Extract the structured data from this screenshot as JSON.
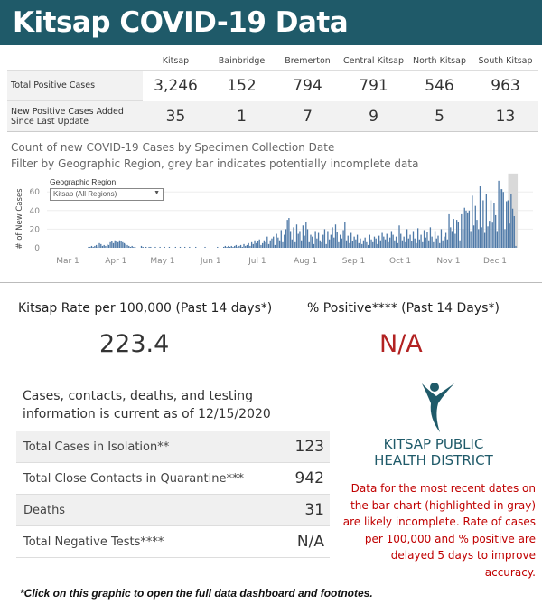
{
  "header": {
    "title": "Kitsap COVID-19 Data"
  },
  "summary_table": {
    "columns": [
      "Kitsap",
      "Bainbridge",
      "Bremerton",
      "Central Kitsap",
      "North Kitsap",
      "South Kitsap"
    ],
    "rows": [
      {
        "label": "Total Positive Cases",
        "values": [
          "3,246",
          "152",
          "794",
          "791",
          "546",
          "963"
        ]
      },
      {
        "label": "New Positive Cases Added Since Last Update",
        "values": [
          "35",
          "1",
          "7",
          "9",
          "5",
          "13"
        ]
      }
    ]
  },
  "chart_data": {
    "type": "bar",
    "title": "Count of new COVID-19 Cases by Specimen Collection Date",
    "subtitle": "Filter by Geographic Region, grey bar indicates potentially incomplete data",
    "ylabel": "# of New Cases",
    "xlabel": "",
    "ylim": [
      0,
      70
    ],
    "y_ticks": [
      "0",
      "20",
      "40",
      "60"
    ],
    "x_ticks": [
      {
        "label": "Mar 1",
        "day": 0
      },
      {
        "label": "Apr 1",
        "day": 31
      },
      {
        "label": "May 1",
        "day": 61
      },
      {
        "label": "Jun 1",
        "day": 92
      },
      {
        "label": "Jul 1",
        "day": 122
      },
      {
        "label": "Aug 1",
        "day": 153
      },
      {
        "label": "Sep 1",
        "day": 184
      },
      {
        "label": "Oct 1",
        "day": 214
      },
      {
        "label": "Nov 1",
        "day": 245
      },
      {
        "label": "Dec 1",
        "day": 275
      }
    ],
    "start_date": "Mar 1",
    "incomplete_from_day": 284,
    "bar_color": "#4e79a7",
    "incomplete_color": "#d9d9d9",
    "values": [
      0,
      0,
      0,
      0,
      0,
      0,
      0,
      0,
      0,
      0,
      0,
      0,
      0,
      1,
      1,
      2,
      1,
      2,
      3,
      1,
      5,
      4,
      2,
      3,
      2,
      4,
      3,
      6,
      7,
      5,
      8,
      7,
      6,
      8,
      7,
      6,
      5,
      4,
      3,
      2,
      1,
      2,
      1,
      1,
      0,
      0,
      0,
      2,
      1,
      0,
      1,
      0,
      1,
      1,
      0,
      0,
      1,
      0,
      0,
      1,
      0,
      0,
      1,
      0,
      0,
      1,
      0,
      0,
      0,
      1,
      0,
      0,
      1,
      0,
      0,
      1,
      0,
      0,
      1,
      0,
      0,
      0,
      1,
      0,
      0,
      0,
      0,
      0,
      1,
      0,
      0,
      0,
      0,
      0,
      0,
      0,
      1,
      0,
      0,
      0,
      1,
      2,
      1,
      2,
      1,
      2,
      1,
      2,
      3,
      1,
      2,
      3,
      1,
      4,
      2,
      3,
      5,
      2,
      6,
      4,
      8,
      5,
      7,
      9,
      3,
      5,
      8,
      6,
      12,
      4,
      8,
      10,
      12,
      3,
      15,
      11,
      8,
      19,
      6,
      14,
      20,
      30,
      32,
      18,
      9,
      22,
      6,
      25,
      15,
      18,
      8,
      24,
      13,
      28,
      20,
      6,
      14,
      12,
      4,
      18,
      10,
      16,
      8,
      6,
      14,
      20,
      4,
      18,
      9,
      14,
      22,
      11,
      25,
      17,
      6,
      14,
      10,
      19,
      28,
      8,
      13,
      5,
      16,
      7,
      12,
      9,
      14,
      5,
      10,
      4,
      8,
      11,
      6,
      3,
      14,
      9,
      6,
      12,
      10,
      4,
      13,
      8,
      16,
      12,
      9,
      15,
      6,
      11,
      18,
      14,
      8,
      12,
      5,
      24,
      15,
      8,
      12,
      6,
      20,
      10,
      14,
      7,
      18,
      10,
      5,
      21,
      9,
      14,
      6,
      19,
      11,
      17,
      8,
      22,
      12,
      6,
      18,
      10,
      13,
      5,
      20,
      8,
      12,
      16,
      9,
      36,
      22,
      18,
      31,
      15,
      30,
      28,
      8,
      36,
      20,
      43,
      40,
      38,
      40,
      18,
      56,
      24,
      45,
      30,
      20,
      66,
      22,
      51,
      16,
      58,
      23,
      29,
      51,
      27,
      48,
      35,
      18,
      72,
      63,
      63,
      60,
      20,
      50,
      51,
      26,
      58,
      42,
      34,
      2
    ]
  },
  "filter": {
    "label": "Geographic Region",
    "value": "Kitsap (All Regions)"
  },
  "rate": {
    "label": "Kitsap Rate per 100,000 (Past 14 days*)",
    "value": "223.4"
  },
  "positive": {
    "label": "% Positive**** (Past 14 Days*)",
    "value": "N/A"
  },
  "info": {
    "heading": "Cases, contacts, deaths, and testing information is current as of 12/15/2020",
    "rows": [
      {
        "label": "Total Cases in Isolation**",
        "value": "123"
      },
      {
        "label": "Total Close Contacts in Quarantine***",
        "value": "942"
      },
      {
        "label": "Deaths",
        "value": "31"
      },
      {
        "label": "Total Negative Tests****",
        "value": "N/A"
      }
    ]
  },
  "logo": {
    "line1": "KITSAP PUBLIC",
    "line2": "HEALTH DISTRICT"
  },
  "note": "Data for the most recent dates on the bar chart (highlighted in gray) are likely incomplete. Rate of cases per 100,000 and % positive are delayed 5 days to improve accuracy.",
  "footer": "*Click on this graphic to open the full data dashboard and footnotes."
}
